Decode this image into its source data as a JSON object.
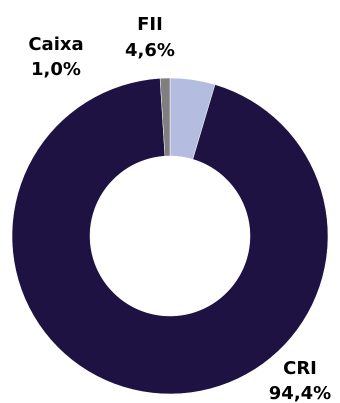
{
  "chart_data": {
    "type": "pie",
    "donut": true,
    "title": "",
    "slices": [
      {
        "name": "FII",
        "value": 4.6,
        "label": "4,6%",
        "color": "#b4bddf"
      },
      {
        "name": "CRI",
        "value": 94.4,
        "label": "94,4%",
        "color": "#1e1243"
      },
      {
        "name": "Caixa",
        "value": 1.0,
        "label": "1,0%",
        "color": "#7f7f7f"
      }
    ]
  }
}
